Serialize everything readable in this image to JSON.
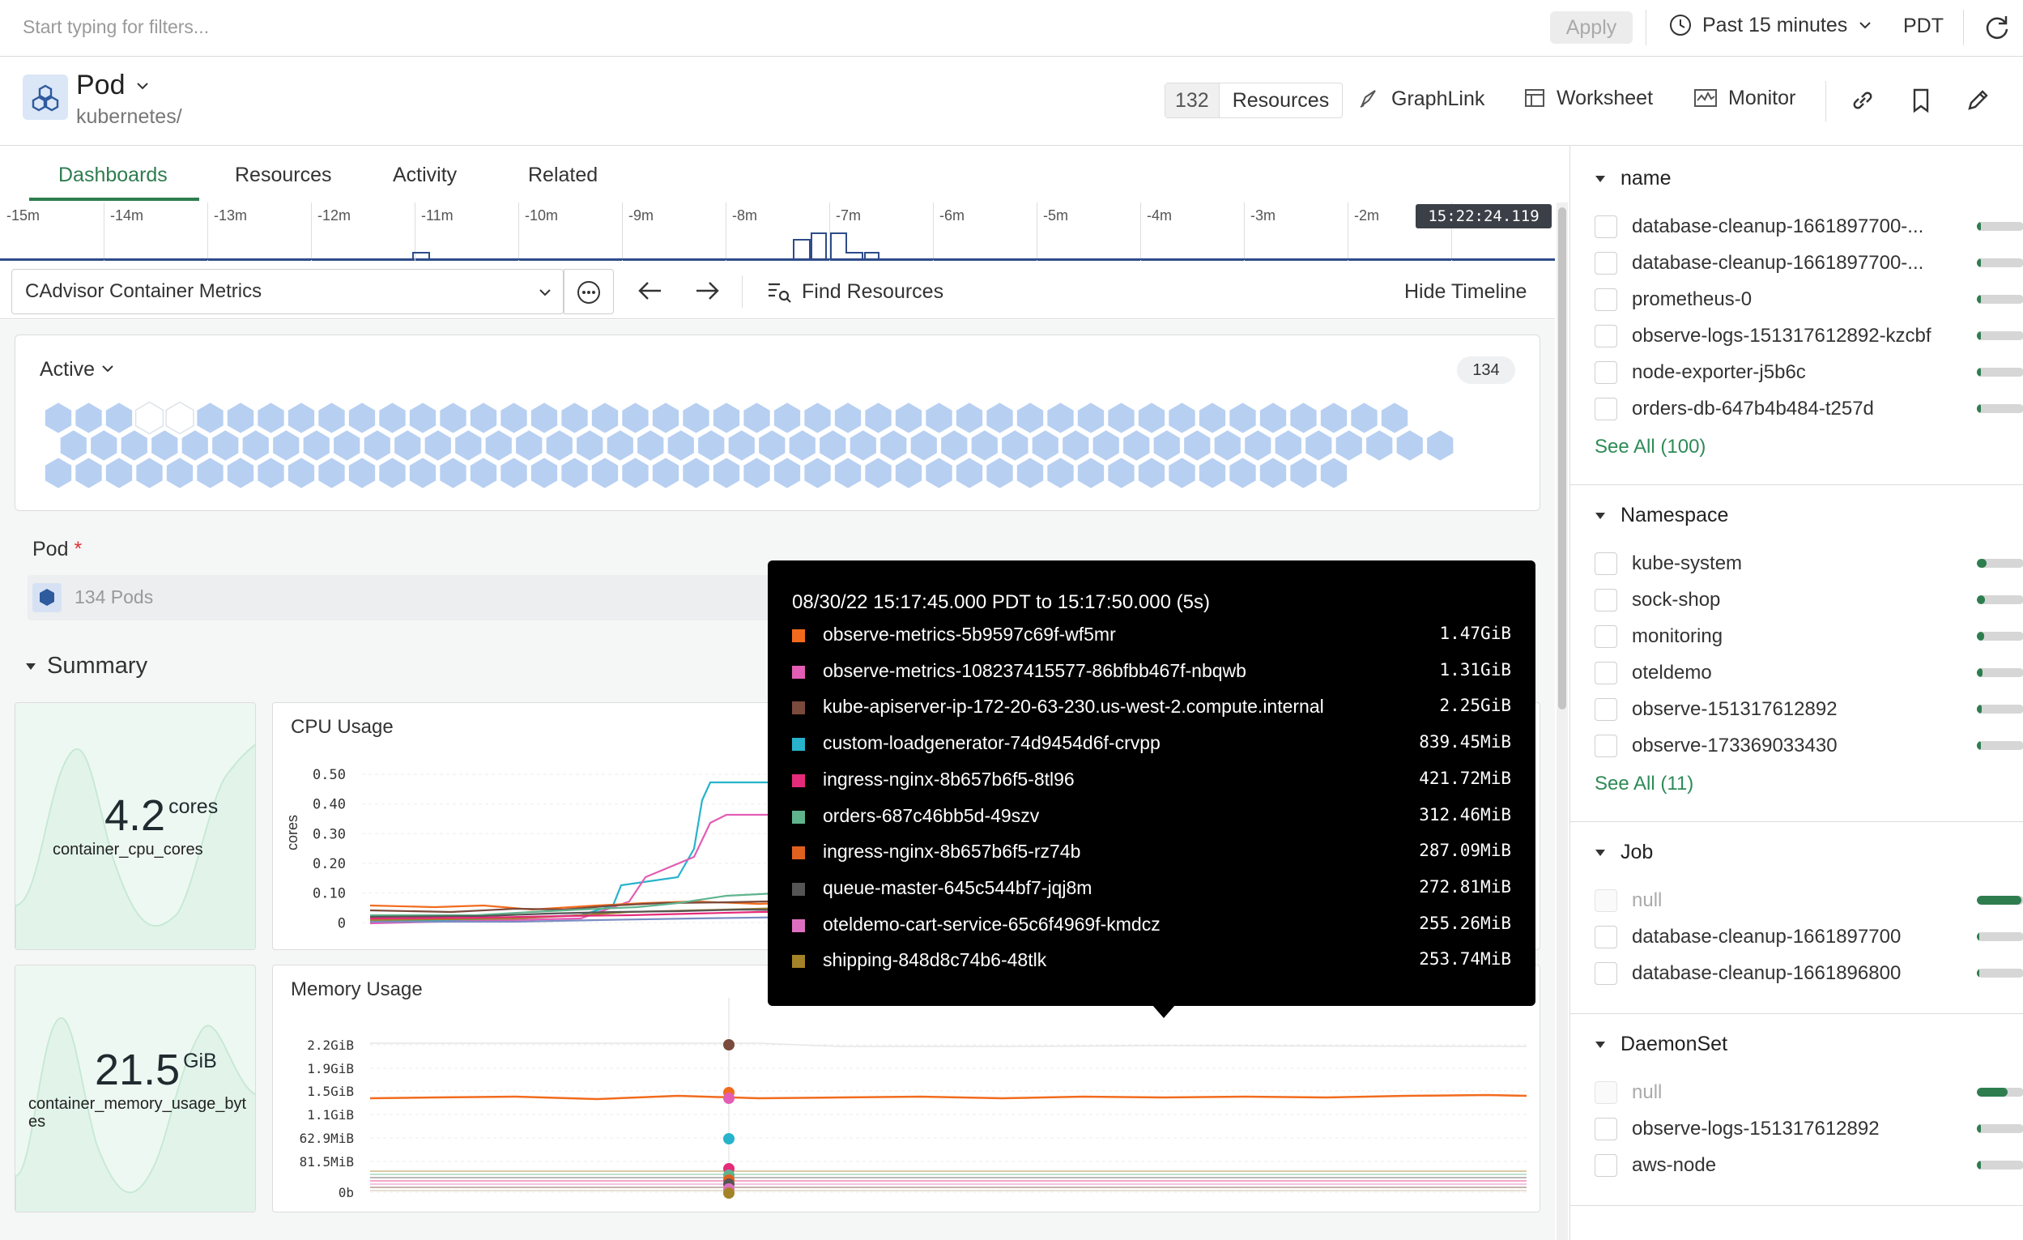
{
  "filter": {
    "placeholder": "Start typing for filters...",
    "apply_label": "Apply",
    "time_range": "Past 15 minutes",
    "timezone": "PDT"
  },
  "header": {
    "title": "Pod",
    "subtitle": "kubernetes/",
    "resources_count": "132",
    "resources_label": "Resources",
    "graphlink_label": "GraphLink",
    "worksheet_label": "Worksheet",
    "monitor_label": "Monitor"
  },
  "tabs": [
    {
      "label": "Dashboards",
      "active": true
    },
    {
      "label": "Resources"
    },
    {
      "label": "Activity"
    },
    {
      "label": "Related"
    }
  ],
  "timeline": {
    "labels": [
      "-15m",
      "-14m",
      "-13m",
      "-12m",
      "-11m",
      "-10m",
      "-9m",
      "-8m",
      "-7m",
      "-6m",
      "-5m",
      "-4m",
      "-3m",
      "-2m"
    ],
    "current_time": "15:22:24.119"
  },
  "toolbar": {
    "dashboard": "CAdvisor Container Metrics",
    "find_resources": "Find Resources",
    "hide_timeline": "Hide Timeline"
  },
  "active": {
    "label": "Active",
    "count": "134"
  },
  "pod_filter": {
    "label": "Pod",
    "required_mark": "*",
    "value": "134 Pods"
  },
  "summary": {
    "label": "Summary"
  },
  "stats": [
    {
      "value": "4.2",
      "unit": "cores",
      "label": "container_cpu_cores"
    },
    {
      "value": "21.5",
      "unit": "GiB",
      "label": "container_memory_usage_bytes"
    }
  ],
  "charts": {
    "cpu": {
      "title": "CPU Usage",
      "ylabel": "cores",
      "ticks": [
        "0.50",
        "0.40",
        "0.30",
        "0.20",
        "0.10",
        "0"
      ]
    },
    "memory": {
      "title": "Memory Usage",
      "ticks": [
        "2.2GiB",
        "1.9GiB",
        "1.5GiB",
        "1.1GiB",
        "62.9MiB",
        "81.5MiB",
        "0b"
      ]
    }
  },
  "tooltip": {
    "title": "08/30/22 15:17:45.000 PDT to 15:17:50.000 (5s)",
    "rows": [
      {
        "name": "observe-metrics-5b9597c69f-wf5mr",
        "value": "1.47GiB",
        "color": "#f26b1d"
      },
      {
        "name": "observe-metrics-108237415577-86bfbb467f-nbqwb",
        "value": "1.31GiB",
        "color": "#e35db4"
      },
      {
        "name": "kube-apiserver-ip-172-20-63-230.us-west-2.compute.internal",
        "value": "2.25GiB",
        "color": "#7a4a3c"
      },
      {
        "name": "custom-loadgenerator-74d9454d6f-crvpp",
        "value": "839.45MiB",
        "color": "#27b3cc"
      },
      {
        "name": "ingress-nginx-8b657b6f5-8tl96",
        "value": "421.72MiB",
        "color": "#e62b7a"
      },
      {
        "name": "orders-687c46bb5d-49szv",
        "value": "312.46MiB",
        "color": "#5fb48e"
      },
      {
        "name": "ingress-nginx-8b657b6f5-rz74b",
        "value": "287.09MiB",
        "color": "#e0601f"
      },
      {
        "name": "queue-master-645c544bf7-jqj8m",
        "value": "272.81MiB",
        "color": "#555555"
      },
      {
        "name": "oteldemo-cart-service-65c6f4969f-kmdcz",
        "value": "255.26MiB",
        "color": "#de6fc0"
      },
      {
        "name": "shipping-848d8c74b6-48tlk",
        "value": "253.74MiB",
        "color": "#a38328"
      }
    ]
  },
  "sidebar": {
    "groups": [
      {
        "title": "name",
        "items": [
          {
            "label": "database-cleanup-1661897700-...",
            "fraction": 0.08
          },
          {
            "label": "database-cleanup-1661897700-...",
            "fraction": 0.08
          },
          {
            "label": "prometheus-0",
            "fraction": 0.08
          },
          {
            "label": "observe-logs-151317612892-kzcbf",
            "fraction": 0.08
          },
          {
            "label": "node-exporter-j5b6c",
            "fraction": 0.08
          },
          {
            "label": "orders-db-647b4b484-t257d",
            "fraction": 0.08
          }
        ],
        "see_all": "See All (100)"
      },
      {
        "title": "Namespace",
        "items": [
          {
            "label": "kube-system",
            "fraction": 0.2
          },
          {
            "label": "sock-shop",
            "fraction": 0.18
          },
          {
            "label": "monitoring",
            "fraction": 0.16
          },
          {
            "label": "oteldemo",
            "fraction": 0.12
          },
          {
            "label": "observe-151317612892",
            "fraction": 0.1
          },
          {
            "label": "observe-173369033430",
            "fraction": 0.08
          }
        ],
        "see_all": "See All (11)"
      },
      {
        "title": "Job",
        "items": [
          {
            "label": "null",
            "fraction": 0.95,
            "disabled": true
          },
          {
            "label": "database-cleanup-1661897700",
            "fraction": 0.05
          },
          {
            "label": "database-cleanup-1661896800",
            "fraction": 0.05
          }
        ]
      },
      {
        "title": "DaemonSet",
        "items": [
          {
            "label": "null",
            "fraction": 0.65,
            "disabled": true
          },
          {
            "label": "observe-logs-151317612892",
            "fraction": 0.08
          },
          {
            "label": "aws-node",
            "fraction": 0.08
          }
        ]
      }
    ]
  },
  "colors": {
    "accent": "#2e7d4f",
    "hex": "#b7cff1",
    "hex_inactive": "#ffffff"
  }
}
